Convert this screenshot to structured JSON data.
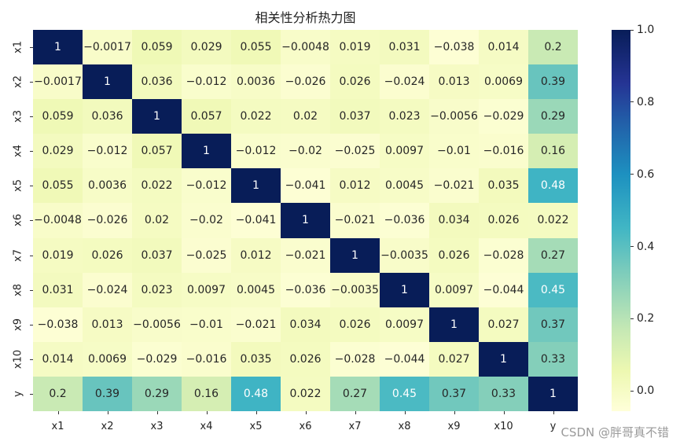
{
  "chart_data": {
    "type": "heatmap",
    "title": "相关性分析热力图",
    "xlabel": "",
    "ylabel": "",
    "x_labels": [
      "x1",
      "x2",
      "x3",
      "x4",
      "x5",
      "x6",
      "x7",
      "x8",
      "x9",
      "x10",
      "y"
    ],
    "y_labels": [
      "x1",
      "x2",
      "x3",
      "x4",
      "x5",
      "x6",
      "x7",
      "x8",
      "x9",
      "x10",
      "y"
    ],
    "values": [
      [
        "1",
        "-0.0017",
        "0.059",
        "0.029",
        "0.055",
        "-0.0048",
        "0.019",
        "0.031",
        "-0.038",
        "0.014",
        "0.2"
      ],
      [
        "-0.0017",
        "1",
        "0.036",
        "-0.012",
        "0.0036",
        "-0.026",
        "0.026",
        "-0.024",
        "0.013",
        "0.0069",
        "0.39"
      ],
      [
        "0.059",
        "0.036",
        "1",
        "0.057",
        "0.022",
        "0.02",
        "0.037",
        "0.023",
        "-0.0056",
        "-0.029",
        "0.29"
      ],
      [
        "0.029",
        "-0.012",
        "0.057",
        "1",
        "-0.012",
        "-0.02",
        "-0.025",
        "0.0097",
        "-0.01",
        "-0.016",
        "0.16"
      ],
      [
        "0.055",
        "0.0036",
        "0.022",
        "-0.012",
        "1",
        "-0.041",
        "0.012",
        "0.0045",
        "-0.021",
        "0.035",
        "0.48"
      ],
      [
        "-0.0048",
        "-0.026",
        "0.02",
        "-0.02",
        "-0.041",
        "1",
        "-0.021",
        "-0.036",
        "0.034",
        "0.026",
        "0.022"
      ],
      [
        "0.019",
        "0.026",
        "0.037",
        "-0.025",
        "0.012",
        "-0.021",
        "1",
        "-0.0035",
        "0.026",
        "-0.028",
        "0.27"
      ],
      [
        "0.031",
        "-0.024",
        "0.023",
        "0.0097",
        "0.0045",
        "-0.036",
        "-0.0035",
        "1",
        "0.0097",
        "-0.044",
        "0.45"
      ],
      [
        "-0.038",
        "0.013",
        "-0.0056",
        "-0.01",
        "-0.021",
        "0.034",
        "0.026",
        "0.0097",
        "1",
        "0.027",
        "0.37"
      ],
      [
        "0.014",
        "0.0069",
        "-0.029",
        "-0.016",
        "0.035",
        "0.026",
        "-0.028",
        "-0.044",
        "0.027",
        "1",
        "0.33"
      ],
      [
        "0.2",
        "0.39",
        "0.29",
        "0.16",
        "0.48",
        "0.022",
        "0.27",
        "0.45",
        "0.37",
        "0.33",
        "1"
      ]
    ],
    "colormap": "YlGnBu",
    "colorbar": {
      "ticks": [
        "1.0",
        "0.8",
        "0.6",
        "0.4",
        "0.2",
        "0.0"
      ],
      "range": [
        -0.056,
        1.0
      ]
    },
    "annotations": true,
    "grid": false,
    "legend_position": "right (colorbar)"
  },
  "watermark": "CSDN @胖哥真不错"
}
